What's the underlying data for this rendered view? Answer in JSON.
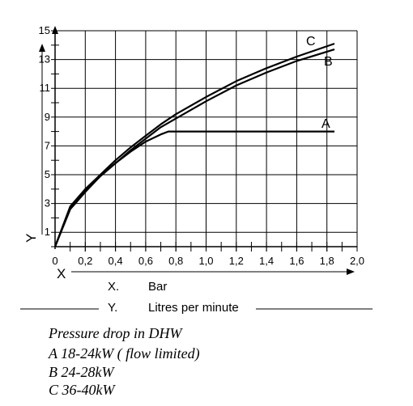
{
  "chart_data": {
    "type": "line",
    "xlim": [
      0,
      2.0
    ],
    "ylim": [
      0,
      15
    ],
    "x_ticks": [
      "0",
      "0,2",
      "0,4",
      "0,6",
      "0,8",
      "1,0",
      "1,2",
      "1,4",
      "1,6",
      "1,8",
      "2,0"
    ],
    "y_ticks": [
      "1",
      "3",
      "5",
      "7",
      "9",
      "11",
      "13",
      "15"
    ],
    "y_tick_values": [
      1,
      3,
      5,
      7,
      9,
      11,
      13,
      15
    ],
    "x_axis_letter": "X",
    "y_axis_letter": "Y",
    "grid": true,
    "series": [
      {
        "name": "A",
        "x": [
          0,
          0.1,
          0.2,
          0.3,
          0.4,
          0.5,
          0.6,
          0.7,
          0.75,
          1.0,
          1.5,
          1.85
        ],
        "y": [
          0,
          2.6,
          3.8,
          4.9,
          5.8,
          6.6,
          7.3,
          7.8,
          8.0,
          8.0,
          8.0,
          8.0
        ]
      },
      {
        "name": "B",
        "x": [
          0,
          0.1,
          0.2,
          0.3,
          0.4,
          0.5,
          0.6,
          0.7,
          0.8,
          1.0,
          1.2,
          1.4,
          1.6,
          1.85
        ],
        "y": [
          0,
          2.7,
          3.9,
          4.9,
          5.8,
          6.7,
          7.5,
          8.3,
          8.9,
          10.1,
          11.2,
          12.1,
          12.9,
          13.7
        ]
      },
      {
        "name": "C",
        "x": [
          0,
          0.1,
          0.2,
          0.3,
          0.4,
          0.5,
          0.6,
          0.7,
          0.8,
          1.0,
          1.2,
          1.4,
          1.6,
          1.85
        ],
        "y": [
          0,
          2.8,
          4.0,
          5.0,
          6.0,
          6.9,
          7.7,
          8.5,
          9.2,
          10.4,
          11.5,
          12.4,
          13.2,
          14.1
        ]
      }
    ]
  },
  "legend": {
    "x_key": "X.",
    "x_desc": "Bar",
    "y_key": "Y.",
    "y_desc": "Litres per minute"
  },
  "caption": {
    "title": "Pressure drop in DHW",
    "line_a": "A  18-24kW  ( flow limited)",
    "line_b": "B  24-28kW",
    "line_c": "C  36-40kW"
  }
}
